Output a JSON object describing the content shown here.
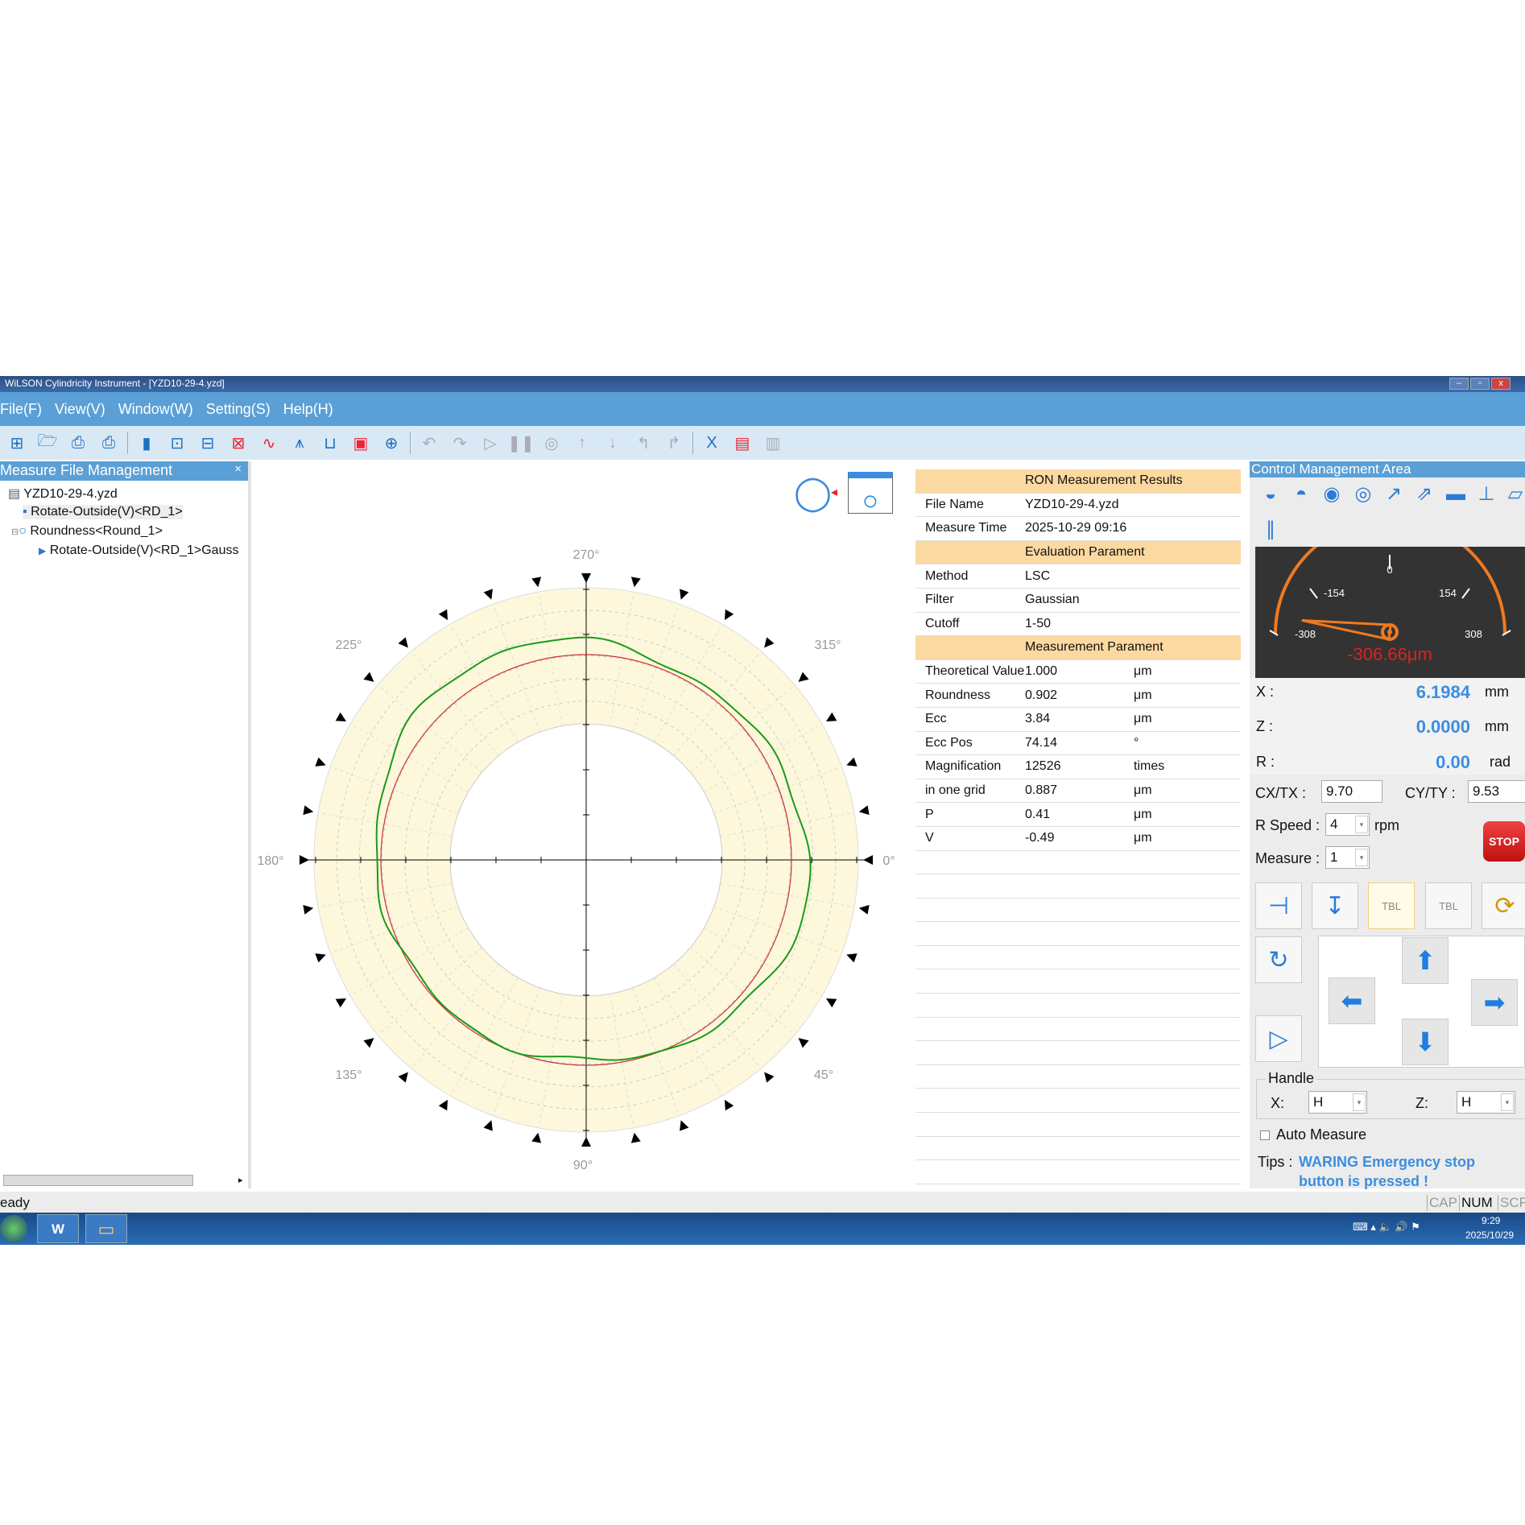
{
  "window": {
    "title": "WiLSON Cylindricity Instrument - [YZD10-29-4.yzd]"
  },
  "menu": [
    "File(F)",
    "View(V)",
    "Window(W)",
    "Setting(S)",
    "Help(H)"
  ],
  "left_panel": {
    "title": "Measure File Management",
    "close": "×",
    "tree": [
      "YZD10-29-4.yzd",
      "Rotate-Outside(V)<RD_1>",
      "Roundness<Round_1>",
      "Rotate-Outside(V)<RD_1>Gauss"
    ]
  },
  "polar": {
    "angle_labels": {
      "a270": "270°",
      "a225": "225°",
      "a315": "315°",
      "a180": "180°",
      "a0": "0°",
      "a135": "135°",
      "a45": "45°",
      "a90": "90°"
    },
    "colors": {
      "ring": "#fdf8dc",
      "profile": "#1a9a1a",
      "reference": "#c83232"
    }
  },
  "results": {
    "title": "RON Measurement Results",
    "file_name": {
      "label": "File Name",
      "value": "YZD10-29-4.yzd"
    },
    "measure_time": {
      "label": "Measure Time",
      "value": "2025-10-29 09:16"
    },
    "eval_title": "Evaluation Parament",
    "eval": [
      {
        "label": "Method",
        "value": "LSC"
      },
      {
        "label": "Filter",
        "value": "Gaussian"
      },
      {
        "label": "Cutoff",
        "value": "1-50"
      }
    ],
    "meas_title": "Measurement Parament",
    "meas": [
      {
        "label": "Theoretical Value",
        "value": "1.000",
        "unit": "μm"
      },
      {
        "label": "Roundness",
        "value": "0.902",
        "unit": "μm"
      },
      {
        "label": "Ecc",
        "value": "3.84",
        "unit": "μm"
      },
      {
        "label": "Ecc Pos",
        "value": "74.14",
        "unit": "°"
      },
      {
        "label": "Magnification",
        "value": "12526",
        "unit": "times"
      },
      {
        "label": "in one grid",
        "value": "0.887",
        "unit": "μm"
      },
      {
        "label": "P",
        "value": "0.41",
        "unit": "μm"
      },
      {
        "label": "V",
        "value": "-0.49",
        "unit": "μm"
      }
    ]
  },
  "control": {
    "title": "Control Management Area",
    "gauge": {
      "t0": "0",
      "tm154": "-154",
      "t154": "154",
      "tm308": "-308",
      "t308": "308",
      "reading": "-306.66μm",
      "value": -306.66,
      "min": -308,
      "max": 308
    },
    "x": {
      "label": "X :",
      "value": "6.1984",
      "unit": "mm"
    },
    "z": {
      "label": "Z :",
      "value": "0.0000",
      "unit": "mm"
    },
    "r": {
      "label": "R :",
      "value": "0.00",
      "unit": "rad"
    },
    "cx": {
      "label": "CX/TX :",
      "value": "9.70"
    },
    "cy": {
      "label": "CY/TY :",
      "value": "9.53"
    },
    "rspeed": {
      "label": "R Speed :",
      "value": "4",
      "unit": "rpm"
    },
    "measure": {
      "label": "Measure :",
      "value": "1"
    },
    "stop": "STOP",
    "tbl": "TBL",
    "handle": {
      "title": "Handle",
      "x_label": "X:",
      "x_value": "H",
      "z_label": "Z:",
      "z_value": "H"
    },
    "auto_measure": "Auto Measure",
    "tips_label": "Tips :",
    "tips_line1": "WARING Emergency stop",
    "tips_line2": "button is pressed !"
  },
  "status": {
    "text": "eady",
    "cap": "CAP",
    "num": "NUM",
    "scr": "SCR"
  },
  "taskbar": {
    "time": "9:29",
    "date": "2025/10/29"
  }
}
